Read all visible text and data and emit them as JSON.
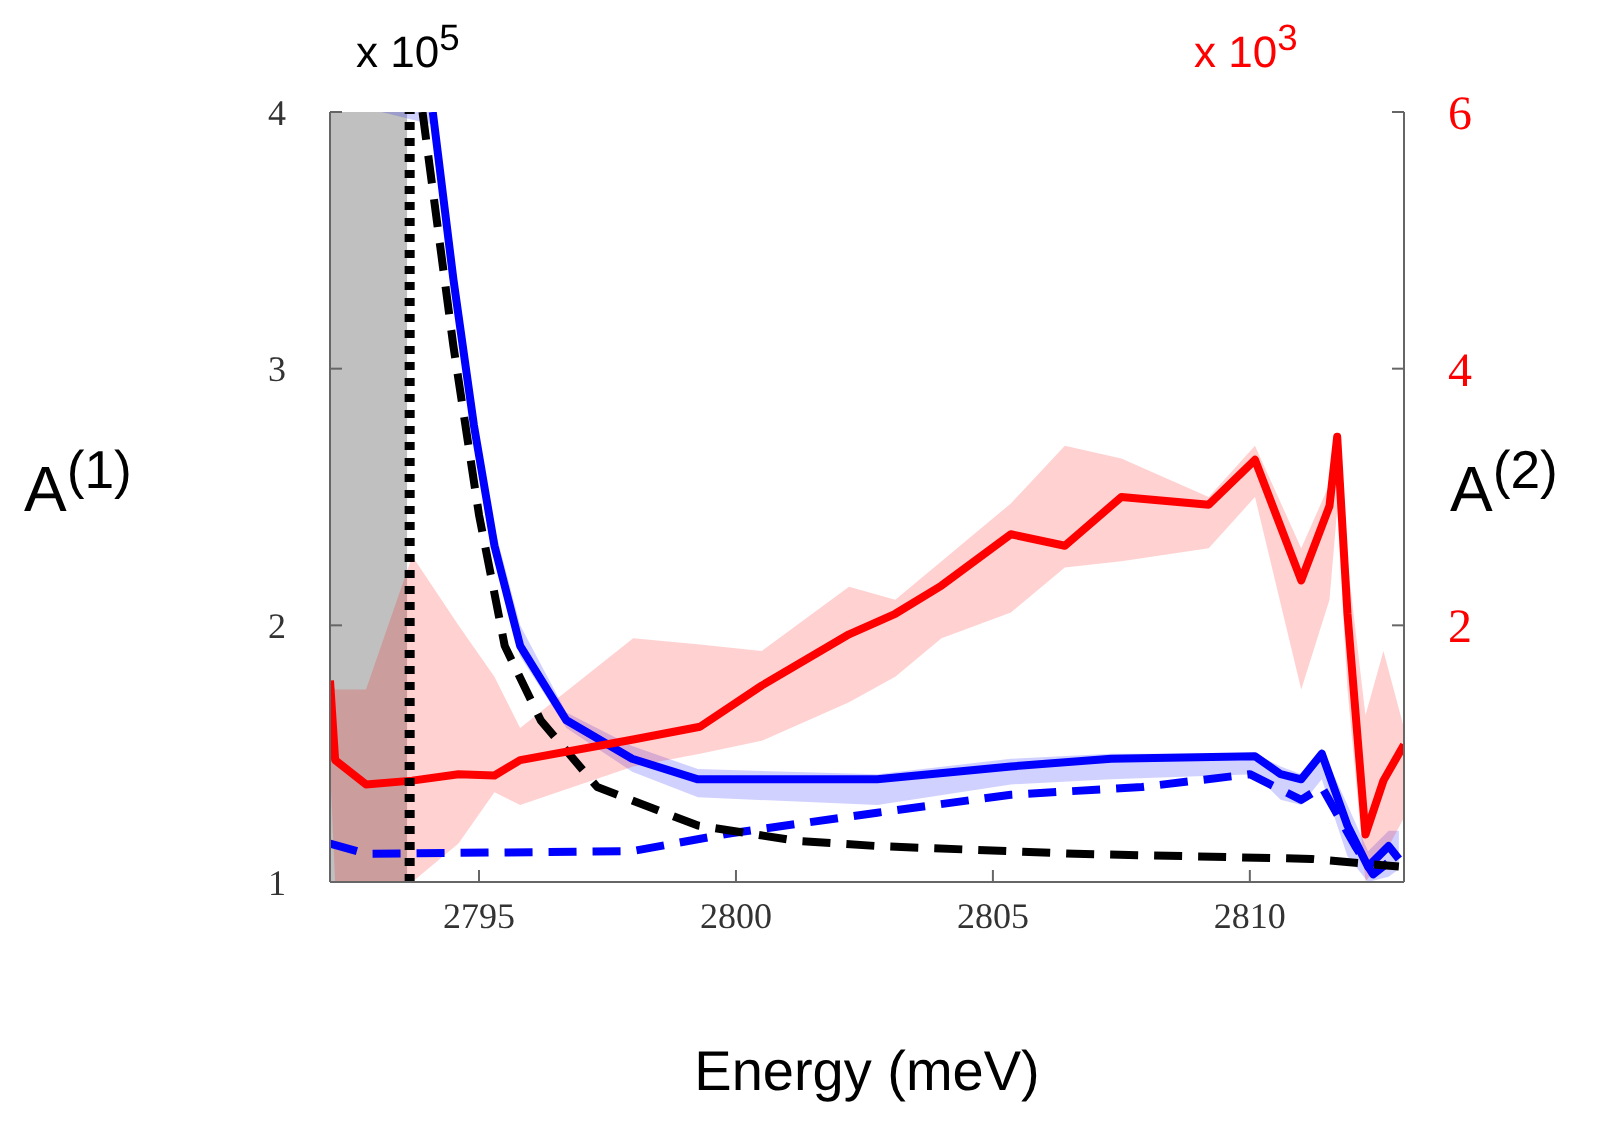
{
  "chart_data": {
    "type": "line",
    "xlabel": "Energy (meV)",
    "ylabel": "A$^{(1)}$",
    "y2label": "A$^{(2)}$",
    "annotations": [
      "x 10$^{5}$",
      "x 10$^{3}$"
    ],
    "xlim": [
      2792.1,
      2813
    ],
    "xticks": [
      2795,
      2800,
      2805,
      2810
    ],
    "ylim": [
      1,
      4
    ],
    "yticks": [
      1,
      2,
      3,
      4
    ],
    "y2lim": [
      0,
      6
    ],
    "y2ticks": [
      2,
      4,
      6
    ],
    "grid": false,
    "legend": false,
    "marker": "none",
    "bands": [
      {
        "axis": "x",
        "from": 2792.1,
        "to": 2793.6,
        "color": "#c0c0c0"
      }
    ],
    "ref_lines": [
      {
        "axis": "x",
        "value": 2793.65,
        "color": "#000000",
        "line_style": "dotted"
      }
    ],
    "series": [
      {
        "color": "#0000ff",
        "line_style": "solid",
        "x": [
          2792.1,
          2793.1,
          2794.1,
          2794.5,
          2794.9,
          2795.3,
          2795.8,
          2796.7,
          2797.98,
          2799.26,
          2802.75,
          2805.35,
          2807.3,
          2810.1,
          2810.6,
          2811.0,
          2811.4,
          2811.9,
          2812.3,
          2812.7,
          2812.9
        ],
        "values": [
          null,
          null,
          4.0,
          3.35,
          2.78,
          2.31,
          1.92,
          1.63,
          1.48,
          1.4,
          1.4,
          1.45,
          1.48,
          1.49,
          1.42,
          1.4,
          1.5,
          1.22,
          1.06,
          1.14,
          1.09
        ],
        "lower": [
          1.05,
          4.0,
          3.95,
          3.3,
          2.72,
          2.27,
          1.88,
          1.6,
          1.43,
          1.33,
          1.3,
          1.38,
          1.4,
          1.42,
          1.32,
          1.3,
          1.4,
          1.1,
          1.0,
          1.02,
          1.05
        ],
        "upper": [
          1.05,
          4.0,
          4.0,
          3.45,
          2.85,
          2.38,
          2.0,
          1.66,
          1.53,
          1.44,
          1.42,
          1.48,
          1.5,
          1.5,
          1.45,
          1.42,
          1.52,
          1.3,
          1.12,
          1.2,
          1.2
        ]
      },
      {
        "color": "#0000ff",
        "line_style": "dashed",
        "x": [
          2792.1,
          2792.8,
          2797.98,
          2799.9,
          2802.75,
          2805.35,
          2807.9,
          2810.0,
          2810.5,
          2811.0,
          2811.4,
          2812.05,
          2812.4,
          2812.9
        ],
        "values": [
          1.15,
          1.11,
          1.12,
          1.19,
          1.27,
          1.34,
          1.37,
          1.42,
          1.37,
          1.32,
          1.37,
          1.14,
          1.03,
          1.11
        ]
      },
      {
        "color": "#000000",
        "line_style": "dashed",
        "x": [
          2793.9,
          2794.5,
          2795.0,
          2795.5,
          2796.2,
          2797.3,
          2799.26,
          2801.2,
          2802.75,
          2806.6,
          2811.2,
          2812.9
        ],
        "values": [
          4.0,
          3.09,
          2.43,
          1.92,
          1.63,
          1.37,
          1.22,
          1.16,
          1.14,
          1.11,
          1.09,
          1.06
        ]
      },
      {
        "color": "#ff0000",
        "line_style": "solid",
        "axis": "y2",
        "x": [
          2792.1,
          2792.2,
          2792.8,
          2793.7,
          2794.6,
          2795.3,
          2795.8,
          2798.0,
          2799.3,
          2800.5,
          2802.2,
          2803.1,
          2804.0,
          2805.35,
          2806.4,
          2807.5,
          2809.2,
          2810.1,
          2811.0,
          2811.55,
          2811.7,
          2811.9,
          2812.25,
          2812.6,
          2813.0
        ],
        "values": [
          1.57,
          0.95,
          0.76,
          0.79,
          0.84,
          0.83,
          0.95,
          1.11,
          1.21,
          1.53,
          1.93,
          2.09,
          2.31,
          2.71,
          2.62,
          3.0,
          2.94,
          3.29,
          2.35,
          2.93,
          3.47,
          2.09,
          0.37,
          0.79,
          1.07
        ],
        "lower": [
          0.9,
          0,
          0,
          0,
          0.3,
          0.7,
          0.6,
          0.9,
          1.0,
          1.1,
          1.4,
          1.6,
          1.9,
          2.1,
          2.45,
          2.5,
          2.6,
          3.0,
          1.5,
          2.2,
          2.9,
          1.5,
          0,
          0.2,
          0.5
        ],
        "upper": [
          1.57,
          1.5,
          1.5,
          2.54,
          2.0,
          1.6,
          1.2,
          1.9,
          1.85,
          1.8,
          2.3,
          2.2,
          2.5,
          2.95,
          3.4,
          3.3,
          3.0,
          3.4,
          2.6,
          3.1,
          3.5,
          2.5,
          1.3,
          1.8,
          1.2
        ]
      }
    ]
  }
}
